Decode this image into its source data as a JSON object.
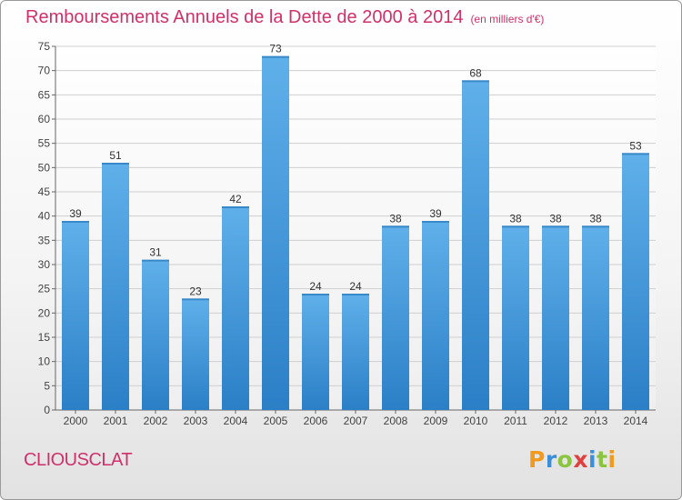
{
  "header": {
    "title": "Remboursements Annuels de la Dette de 2000 à 2014",
    "subtitle": "(en milliers d'€)"
  },
  "footer": {
    "commune": "CLIOUSCLAT",
    "logo_letters": [
      "P",
      "r",
      "o",
      "x",
      "i",
      "t",
      "i"
    ]
  },
  "colors": {
    "title": "#d0306a",
    "bar_light": "#5fb0ea",
    "bar_dark": "#2b7fc6",
    "grid": "#cfcfcf",
    "logo": [
      "#f29a1d",
      "#3a8fd8",
      "#8bc43f",
      "#e0413e",
      "#3a8fd8",
      "#8bc43f",
      "#f29a1d"
    ]
  },
  "chart_data": {
    "type": "bar",
    "title": "Remboursements Annuels de la Dette de 2000 à 2014",
    "subtitle": "(en milliers d'€)",
    "categories": [
      "2000",
      "2001",
      "2002",
      "2003",
      "2004",
      "2005",
      "2006",
      "2007",
      "2008",
      "2009",
      "2010",
      "2011",
      "2012",
      "2013",
      "2014"
    ],
    "values": [
      39,
      51,
      31,
      23,
      42,
      73,
      24,
      24,
      38,
      39,
      68,
      38,
      38,
      38,
      53
    ],
    "ylim": [
      0,
      75
    ],
    "yticks": [
      0,
      5,
      10,
      15,
      20,
      25,
      30,
      35,
      40,
      45,
      50,
      55,
      60,
      65,
      70,
      75
    ],
    "grid": true,
    "legend": "none"
  }
}
